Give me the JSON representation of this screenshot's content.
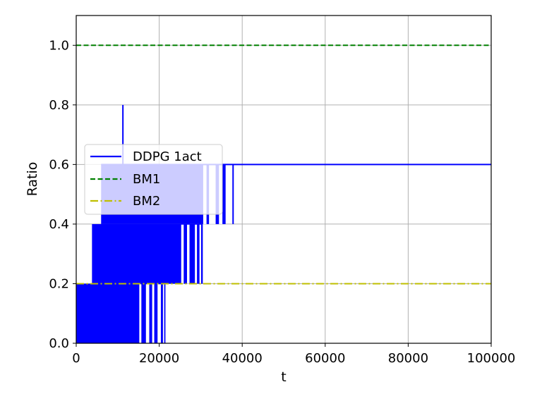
{
  "chart_data": {
    "type": "line",
    "xlabel": "t",
    "ylabel": "Ratio",
    "xlim": [
      0,
      100000
    ],
    "ylim": [
      0,
      1.1
    ],
    "xticks": [
      0,
      20000,
      40000,
      60000,
      80000,
      100000
    ],
    "xtick_labels": [
      "0",
      "20000",
      "40000",
      "60000",
      "80000",
      "100000"
    ],
    "yticks": [
      0.0,
      0.2,
      0.4,
      0.6,
      0.8,
      1.0
    ],
    "ytick_labels": [
      "0.0",
      "0.2",
      "0.4",
      "0.6",
      "0.8",
      "1.0"
    ],
    "grid": true,
    "legend_position": "center-left",
    "series": [
      {
        "name": "DDPG 1act",
        "color": "#0000ff",
        "style": "solid",
        "x": [
          0,
          4000,
          4000,
          6000,
          6000,
          11200,
          11200,
          11300,
          11300,
          32000,
          32000,
          36000,
          36000,
          37800,
          37800,
          100000
        ],
        "y": [
          0.2,
          0.2,
          0.4,
          0.4,
          0.6,
          0.6,
          0.8,
          0.8,
          0.6,
          0.6,
          0.4,
          0.4,
          0.6,
          0.6,
          0.4,
          0.6
        ],
        "dense_bands": [
          {
            "x_start": 0,
            "x_end": 21500,
            "y_low": 0.0,
            "y_high": 0.2
          },
          {
            "x_start": 3800,
            "x_end": 30500,
            "y_low": 0.2,
            "y_high": 0.4
          },
          {
            "x_start": 6000,
            "x_end": 36000,
            "y_low": 0.4,
            "y_high": 0.6
          }
        ]
      },
      {
        "name": "BM1",
        "color": "#008000",
        "style": "dashed",
        "x": [
          0,
          100000
        ],
        "y": [
          1.0,
          1.0
        ]
      },
      {
        "name": "BM2",
        "color": "#bfbf00",
        "style": "dashdot",
        "x": [
          0,
          100000
        ],
        "y": [
          0.2,
          0.2
        ]
      }
    ]
  }
}
